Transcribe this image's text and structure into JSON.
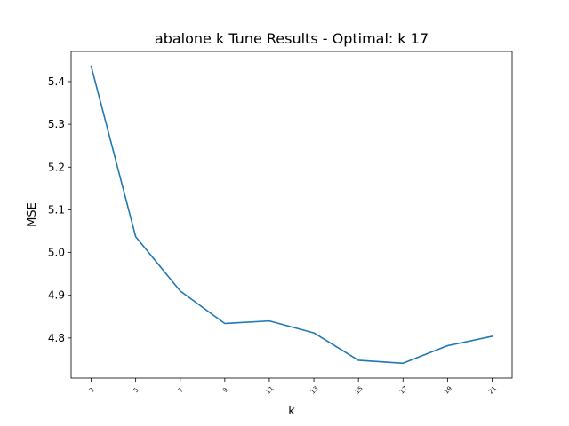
{
  "chart_data": {
    "type": "line",
    "title": "abalone k Tune Results - Optimal: k 17",
    "xlabel": "k",
    "ylabel": "MSE",
    "x": [
      3,
      5,
      7,
      9,
      11,
      13,
      15,
      17,
      19,
      21
    ],
    "series": [
      {
        "values": [
          5.436,
          5.037,
          4.91,
          4.834,
          4.84,
          4.812,
          4.748,
          4.741,
          4.782,
          4.804
        ],
        "color": "#1f77b4"
      }
    ],
    "xticks": [
      "3",
      "5",
      "7",
      "9",
      "11",
      "13",
      "15",
      "17",
      "19",
      "21"
    ],
    "yticks": [
      4.8,
      4.9,
      5.0,
      5.1,
      5.2,
      5.3,
      5.4
    ],
    "ytick_labels": [
      "4.8",
      "4.9",
      "5.0",
      "5.1",
      "5.2",
      "5.3",
      "5.4"
    ],
    "xlim": [
      2.1,
      21.9
    ],
    "ylim": [
      4.7063,
      5.4705
    ],
    "grid": false,
    "legend": false
  }
}
